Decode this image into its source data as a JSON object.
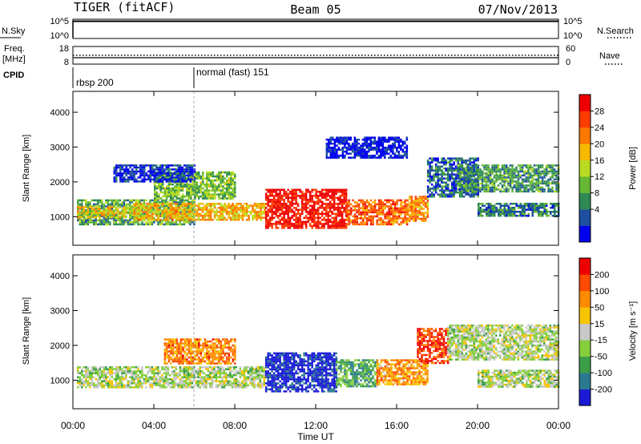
{
  "header": {
    "station": "TIGER (fitACF)",
    "beam": "Beam 05",
    "date": "07/Nov/2013"
  },
  "top_panels": {
    "nsky_label": "N.Sky",
    "nsky_ticks": [
      "10^5",
      "10^0"
    ],
    "nsearch_label": "N.Search",
    "nsearch_ticks": [
      "10^5",
      "10^0"
    ],
    "freq_label_line1": "Freq.",
    "freq_label_line2": "[MHz]",
    "freq_ticks": [
      "18",
      "8"
    ],
    "nave_label": "Nave",
    "nave_ticks": [
      "60",
      "0"
    ],
    "cpid_label": "CPID",
    "cpid_segments": [
      {
        "label": "rbsp 200",
        "start_hour": 0
      },
      {
        "label": "normal (fast) 151",
        "start_hour": 6
      }
    ]
  },
  "chart_data": [
    {
      "type": "heatmap",
      "name": "Power",
      "ylabel": "Slant Range [km]",
      "yticks": [
        1000,
        2000,
        3000,
        4000
      ],
      "ylim": [
        180,
        4600
      ],
      "colorbar_label": "Power [dB]",
      "colorbar_ticks": [
        "28",
        "24",
        "20",
        "16",
        "12",
        "8",
        "4"
      ],
      "colors": [
        "#0000ee",
        "#1e4fa0",
        "#2f8a55",
        "#66b834",
        "#b9dc23",
        "#f7b800",
        "#ff7800",
        "#ff3c00",
        "#ee0000"
      ],
      "regions": [
        {
          "t0": 0.2,
          "t1": 6.0,
          "r0": 800,
          "r1": 1500,
          "level": 0.35
        },
        {
          "t0": 0.2,
          "t1": 3.0,
          "r0": 1000,
          "r1": 1300,
          "level": 0.55
        },
        {
          "t0": 3.0,
          "t1": 9.5,
          "r0": 900,
          "r1": 1400,
          "level": 0.62
        },
        {
          "t0": 4.0,
          "t1": 8.0,
          "r0": 1500,
          "r1": 2300,
          "level": 0.4
        },
        {
          "t0": 9.5,
          "t1": 13.5,
          "r0": 700,
          "r1": 1800,
          "level": 0.95
        },
        {
          "t0": 13.5,
          "t1": 16.5,
          "r0": 800,
          "r1": 1500,
          "level": 0.78
        },
        {
          "t0": 16.5,
          "t1": 17.5,
          "r0": 900,
          "r1": 1600,
          "level": 0.7
        },
        {
          "t0": 17.5,
          "t1": 20.0,
          "r0": 1600,
          "r1": 2700,
          "level": 0.2
        },
        {
          "t0": 19.0,
          "t1": 24.0,
          "r0": 1700,
          "r1": 2500,
          "level": 0.3
        },
        {
          "t0": 20.0,
          "t1": 24.0,
          "r0": 1000,
          "r1": 1400,
          "level": 0.25
        },
        {
          "t0": 2.0,
          "t1": 6.0,
          "r0": 2000,
          "r1": 2500,
          "level": 0.1
        },
        {
          "t0": 12.5,
          "t1": 16.5,
          "r0": 2700,
          "r1": 3300,
          "level": 0.05
        }
      ]
    },
    {
      "type": "heatmap",
      "name": "Velocity",
      "ylabel": "Slant Range [km]",
      "yticks": [
        1000,
        2000,
        3000,
        4000
      ],
      "ylim": [
        180,
        4600
      ],
      "colorbar_label": "Velocity [m s⁻¹]",
      "colorbar_ticks": [
        "200",
        "100",
        "50",
        "15",
        "-15",
        "-50",
        "-100",
        "-200"
      ],
      "colors": [
        "#1a1ad6",
        "#2a7a8f",
        "#3b9f4a",
        "#86cf3c",
        "#c8c8c8",
        "#f7c400",
        "#ff8c00",
        "#ff4a00",
        "#ee0000"
      ],
      "regions": [
        {
          "t0": 0.2,
          "t1": 9.5,
          "r0": 800,
          "r1": 1400,
          "level": 0.45
        },
        {
          "t0": 4.5,
          "t1": 8.0,
          "r0": 1500,
          "r1": 2200,
          "level": 0.75
        },
        {
          "t0": 9.5,
          "t1": 13.0,
          "r0": 700,
          "r1": 1800,
          "level": 0.02
        },
        {
          "t0": 13.0,
          "t1": 15.0,
          "r0": 800,
          "r1": 1600,
          "level": 0.3
        },
        {
          "t0": 15.0,
          "t1": 17.5,
          "r0": 900,
          "r1": 1600,
          "level": 0.7
        },
        {
          "t0": 17.0,
          "t1": 18.5,
          "r0": 1500,
          "r1": 2500,
          "level": 0.88
        },
        {
          "t0": 18.5,
          "t1": 24.0,
          "r0": 1600,
          "r1": 2600,
          "level": 0.45
        },
        {
          "t0": 20.0,
          "t1": 24.0,
          "r0": 800,
          "r1": 1300,
          "level": 0.45
        }
      ]
    }
  ],
  "xaxis": {
    "label": "Time UT",
    "ticks": [
      "00:00",
      "04:00",
      "08:00",
      "12:00",
      "16:00",
      "20:00",
      "00:00"
    ],
    "xlim": [
      0,
      24
    ]
  }
}
